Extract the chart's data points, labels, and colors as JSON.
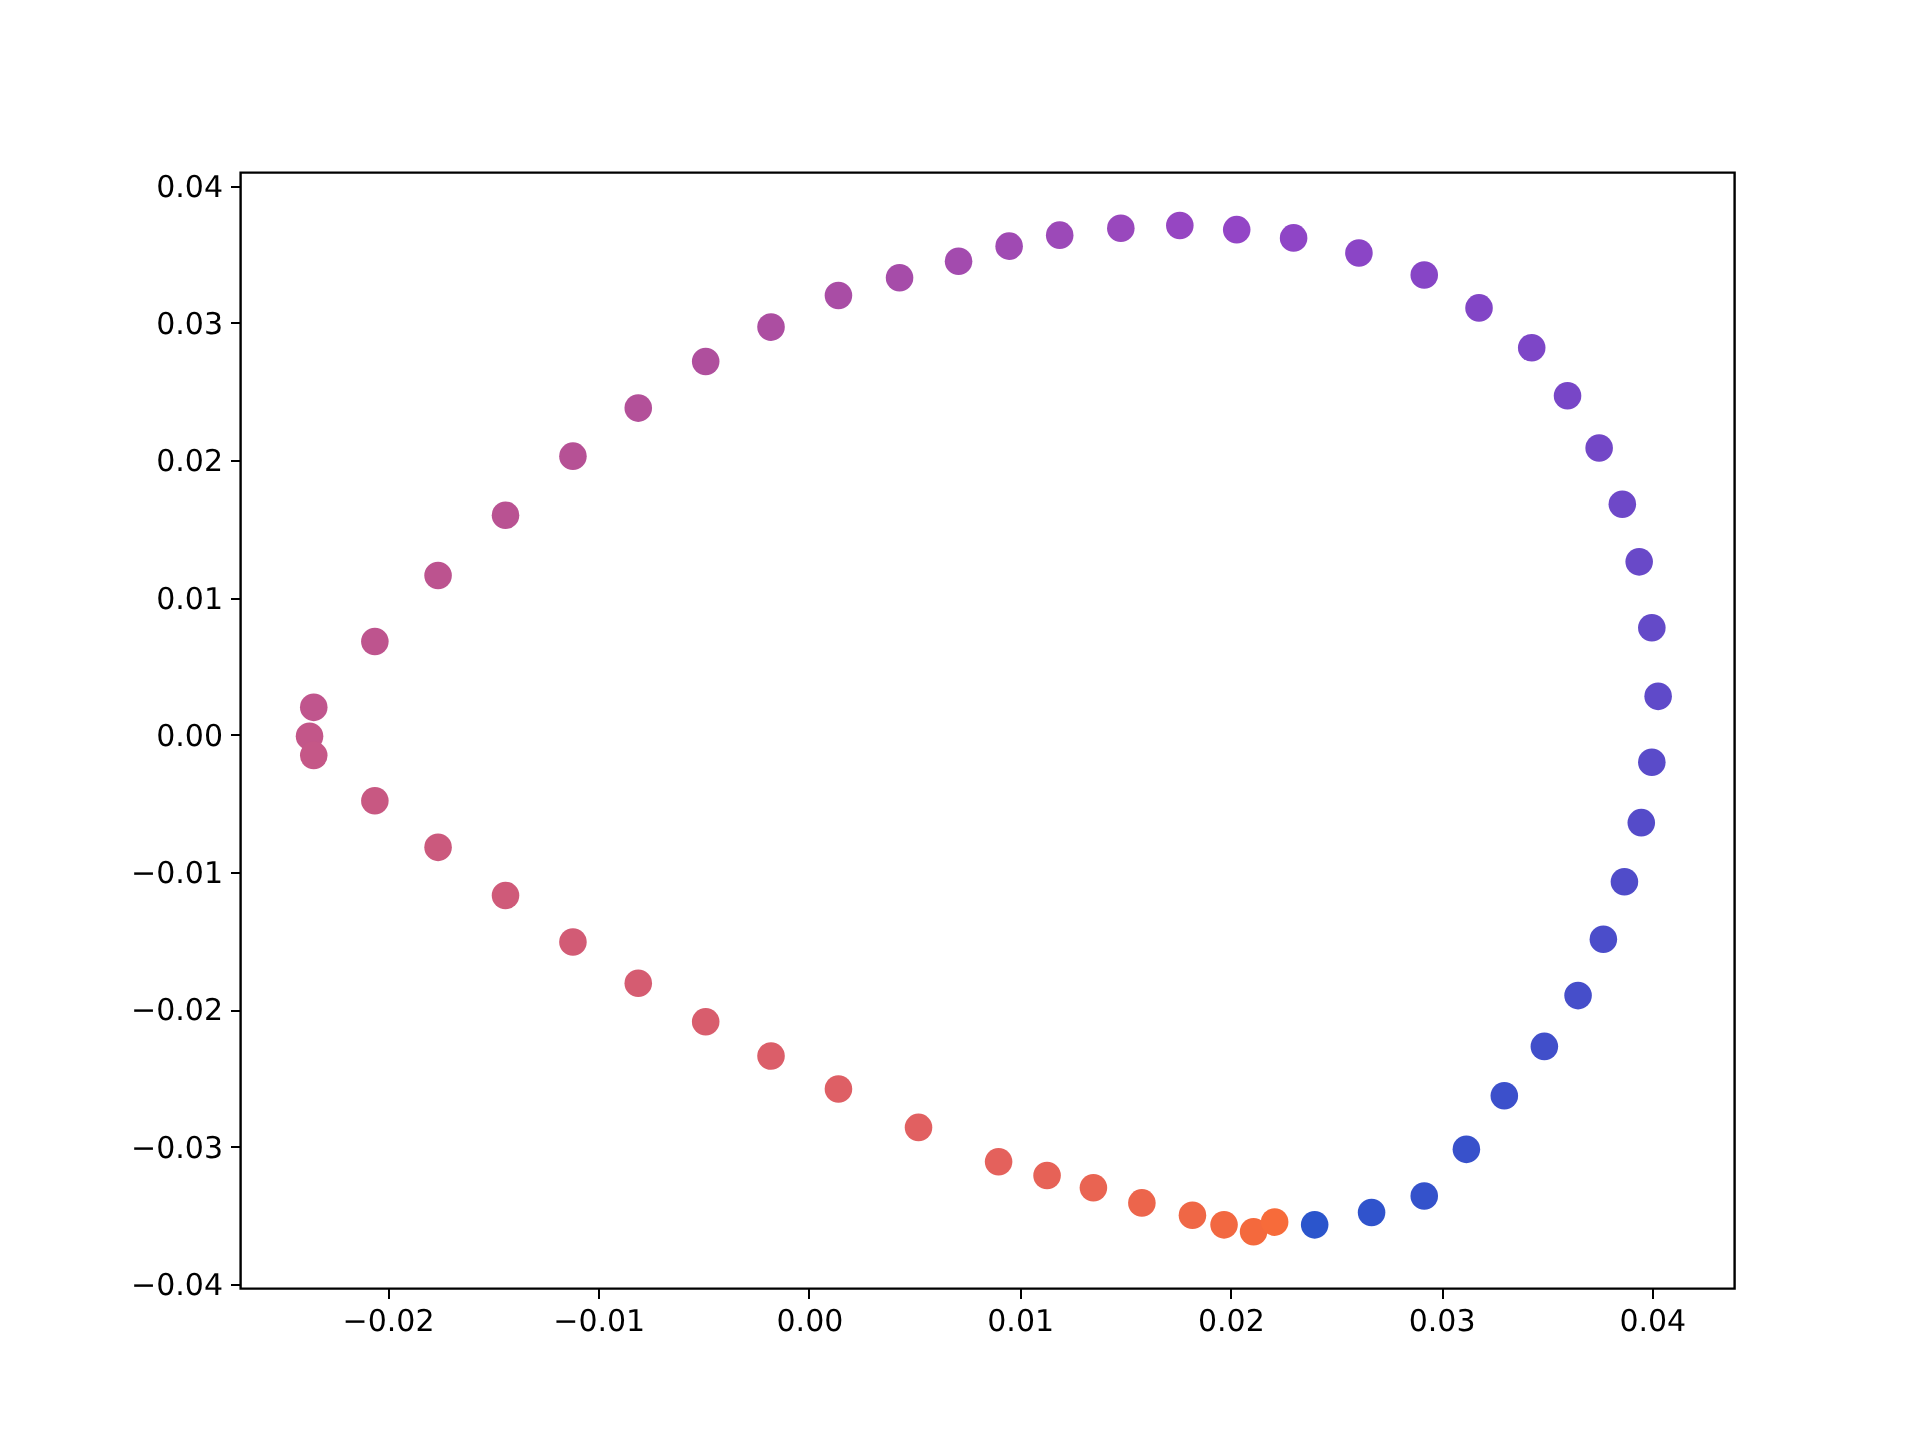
{
  "chart_data": {
    "type": "scatter",
    "marker": "circle",
    "xlim": [
      -0.027,
      0.0439
    ],
    "ylim": [
      -0.0403,
      0.041
    ],
    "xticks": [
      {
        "value": -0.02,
        "label": "−0.02"
      },
      {
        "value": -0.01,
        "label": "−0.01"
      },
      {
        "value": 0,
        "label": "0.00"
      },
      {
        "value": 0.01,
        "label": "0.01"
      },
      {
        "value": 0.02,
        "label": "0.02"
      },
      {
        "value": 0.03,
        "label": "0.03"
      },
      {
        "value": 0.04,
        "label": "0.04"
      }
    ],
    "yticks": [
      {
        "value": -0.04,
        "label": "−0.04"
      },
      {
        "value": -0.03,
        "label": "−0.03"
      },
      {
        "value": -0.02,
        "label": "−0.02"
      },
      {
        "value": -0.01,
        "label": "−0.01"
      },
      {
        "value": 0,
        "label": "0.00"
      },
      {
        "value": 0.01,
        "label": "0.01"
      },
      {
        "value": 0.02,
        "label": "0.02"
      },
      {
        "value": 0.03,
        "label": "0.03"
      },
      {
        "value": 0.04,
        "label": "0.04"
      }
    ],
    "series": [
      {
        "x": [
          0.024,
          0.0267,
          0.0292,
          0.0312,
          0.033,
          0.0349,
          0.0365,
          0.0377,
          0.0387,
          0.0395,
          0.04,
          0.0403,
          0.04,
          0.0394,
          0.0386,
          0.0375,
          0.036,
          0.0343,
          0.0318,
          0.0292,
          0.0261,
          0.023,
          0.0203,
          0.0176,
          0.0148,
          0.0119,
          0.0095,
          0.0071,
          0.0043,
          0.0014,
          -0.0018,
          -0.0049,
          -0.0081,
          -0.0112,
          -0.0144,
          -0.0176,
          -0.0206,
          -0.0235,
          -0.0237,
          -0.0235,
          -0.0206,
          -0.0176,
          -0.0144,
          -0.0112,
          -0.0081,
          -0.0049,
          -0.0018,
          0.0014,
          0.0052,
          0.009,
          0.0113,
          0.0135,
          0.0158,
          0.0182,
          0.0197,
          0.0211,
          0.0221
        ],
        "values": [
          -0.0357,
          -0.0348,
          -0.0336,
          -0.0302,
          -0.0263,
          -0.0227,
          -0.019,
          -0.0149,
          -0.0107,
          -0.0064,
          -0.002,
          0.0028,
          0.0078,
          0.0126,
          0.0168,
          0.0209,
          0.0247,
          0.0282,
          0.0311,
          0.0335,
          0.0351,
          0.0362,
          0.0368,
          0.0371,
          0.0369,
          0.0364,
          0.0356,
          0.0345,
          0.0333,
          0.032,
          0.0297,
          0.0272,
          0.0238,
          0.0203,
          0.016,
          0.0116,
          0.0068,
          0.002,
          -0.0001,
          -0.0015,
          -0.0048,
          -0.0082,
          -0.0117,
          -0.0151,
          -0.0181,
          -0.0209,
          -0.0234,
          -0.0258,
          -0.0286,
          -0.0311,
          -0.0321,
          -0.033,
          -0.0341,
          -0.035,
          -0.0357,
          -0.0362,
          -0.0355
        ],
        "colors": [
          "#2b55cc",
          "#3053cc",
          "#3452cb",
          "#3851cb",
          "#3c50cb",
          "#414fca",
          "#464eca",
          "#4b4dca",
          "#504cc9",
          "#554bc9",
          "#5a4bc9",
          "#5f4ac9",
          "#644ac8",
          "#6949c8",
          "#6e48c8",
          "#7347c7",
          "#7846c7",
          "#7d46c7",
          "#8245c6",
          "#8745c6",
          "#8b45c6",
          "#8f45c6",
          "#9345c6",
          "#9646c2",
          "#9948bd",
          "#9c49b8",
          "#a04ab3",
          "#a34bae",
          "#a64ca9",
          "#a94da5",
          "#ac4ea1",
          "#af4f9d",
          "#b35099",
          "#b65195",
          "#b95292",
          "#bc538f",
          "#be548e",
          "#c0558d",
          "#c35689",
          "#c55787",
          "#c85882",
          "#cb597d",
          "#cf5a79",
          "#d25b75",
          "#d55c71",
          "#d85d6d",
          "#db5e69",
          "#de5f65",
          "#e16061",
          "#e4615c",
          "#e66257",
          "#e96452",
          "#ec654c",
          "#ef6746",
          "#f26841",
          "#f4693d",
          "#f76b3a"
        ]
      }
    ]
  }
}
